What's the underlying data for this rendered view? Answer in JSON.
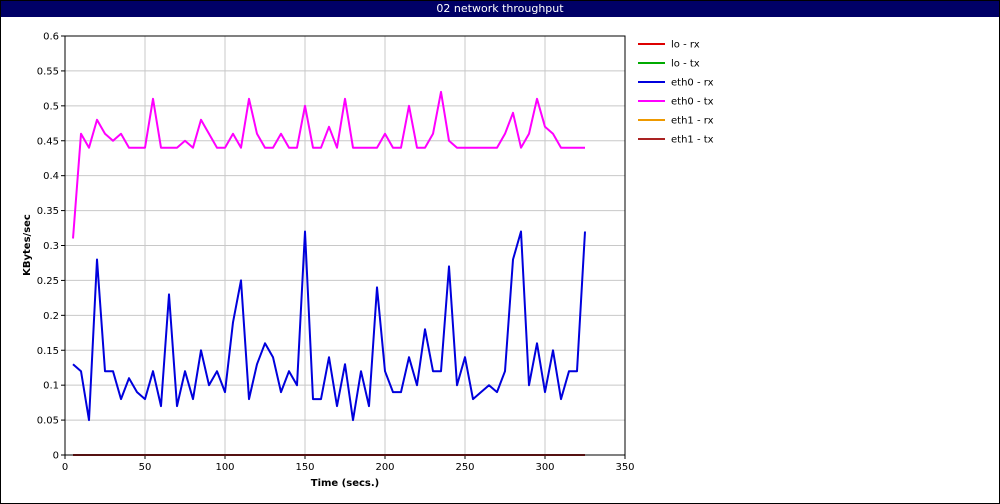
{
  "window": {
    "title": "02 network throughput"
  },
  "chart_data": {
    "type": "line",
    "title": "02 network throughput",
    "xlabel": "Time (secs.)",
    "ylabel": "KBytes/sec",
    "xlim": [
      0,
      350
    ],
    "ylim": [
      0,
      0.6
    ],
    "x_ticks": [
      "0",
      "50",
      "100",
      "150",
      "200",
      "250",
      "300",
      "350"
    ],
    "y_ticks": [
      "0",
      "0.05",
      "0.1",
      "0.15",
      "0.2",
      "0.25",
      "0.3",
      "0.35",
      "0.4",
      "0.45",
      "0.5",
      "0.55",
      "0.6"
    ],
    "grid": true,
    "legend_position": "right",
    "x": [
      5,
      10,
      15,
      20,
      25,
      30,
      35,
      40,
      45,
      50,
      55,
      60,
      65,
      70,
      75,
      80,
      85,
      90,
      95,
      100,
      105,
      110,
      115,
      120,
      125,
      130,
      135,
      140,
      145,
      150,
      155,
      160,
      165,
      170,
      175,
      180,
      185,
      190,
      195,
      200,
      205,
      210,
      215,
      220,
      225,
      230,
      235,
      240,
      245,
      250,
      255,
      260,
      265,
      270,
      275,
      280,
      285,
      290,
      295,
      300,
      305,
      310,
      315,
      320,
      325
    ],
    "series": [
      {
        "name": "lo - rx",
        "color": "#dd0000",
        "values": [
          0,
          0,
          0,
          0,
          0,
          0,
          0,
          0,
          0,
          0,
          0,
          0,
          0,
          0,
          0,
          0,
          0,
          0,
          0,
          0,
          0,
          0,
          0,
          0,
          0,
          0,
          0,
          0,
          0,
          0,
          0,
          0,
          0,
          0,
          0,
          0,
          0,
          0,
          0,
          0,
          0,
          0,
          0,
          0,
          0,
          0,
          0,
          0,
          0,
          0,
          0,
          0,
          0,
          0,
          0,
          0,
          0,
          0,
          0,
          0,
          0,
          0,
          0,
          0,
          0
        ]
      },
      {
        "name": "lo - tx",
        "color": "#00aa00",
        "values": [
          0,
          0,
          0,
          0,
          0,
          0,
          0,
          0,
          0,
          0,
          0,
          0,
          0,
          0,
          0,
          0,
          0,
          0,
          0,
          0,
          0,
          0,
          0,
          0,
          0,
          0,
          0,
          0,
          0,
          0,
          0,
          0,
          0,
          0,
          0,
          0,
          0,
          0,
          0,
          0,
          0,
          0,
          0,
          0,
          0,
          0,
          0,
          0,
          0,
          0,
          0,
          0,
          0,
          0,
          0,
          0,
          0,
          0,
          0,
          0,
          0,
          0,
          0,
          0,
          0
        ]
      },
      {
        "name": "eth0 - rx",
        "color": "#0000dd",
        "values": [
          0.13,
          0.12,
          0.05,
          0.28,
          0.12,
          0.12,
          0.08,
          0.11,
          0.09,
          0.08,
          0.12,
          0.07,
          0.23,
          0.07,
          0.12,
          0.08,
          0.15,
          0.1,
          0.12,
          0.09,
          0.19,
          0.25,
          0.08,
          0.13,
          0.16,
          0.14,
          0.09,
          0.12,
          0.1,
          0.32,
          0.08,
          0.08,
          0.14,
          0.07,
          0.13,
          0.05,
          0.12,
          0.07,
          0.24,
          0.12,
          0.09,
          0.09,
          0.14,
          0.1,
          0.18,
          0.12,
          0.12,
          0.27,
          0.1,
          0.14,
          0.08,
          0.09,
          0.1,
          0.09,
          0.12,
          0.28,
          0.32,
          0.1,
          0.16,
          0.09,
          0.15,
          0.08,
          0.12,
          0.12,
          0.32
        ]
      },
      {
        "name": "eth0 - tx",
        "color": "#ff00ff",
        "values": [
          0.31,
          0.46,
          0.44,
          0.48,
          0.46,
          0.45,
          0.46,
          0.44,
          0.44,
          0.44,
          0.51,
          0.44,
          0.44,
          0.44,
          0.45,
          0.44,
          0.48,
          0.46,
          0.44,
          0.44,
          0.46,
          0.44,
          0.51,
          0.46,
          0.44,
          0.44,
          0.46,
          0.44,
          0.44,
          0.5,
          0.44,
          0.44,
          0.47,
          0.44,
          0.51,
          0.44,
          0.44,
          0.44,
          0.44,
          0.46,
          0.44,
          0.44,
          0.5,
          0.44,
          0.44,
          0.46,
          0.52,
          0.45,
          0.44,
          0.44,
          0.44,
          0.44,
          0.44,
          0.44,
          0.46,
          0.49,
          0.44,
          0.46,
          0.51,
          0.47,
          0.46,
          0.44,
          0.44,
          0.44,
          0.44
        ]
      },
      {
        "name": "eth1 - rx",
        "color": "#ee9900",
        "values": [
          0,
          0,
          0,
          0,
          0,
          0,
          0,
          0,
          0,
          0,
          0,
          0,
          0,
          0,
          0,
          0,
          0,
          0,
          0,
          0,
          0,
          0,
          0,
          0,
          0,
          0,
          0,
          0,
          0,
          0,
          0,
          0,
          0,
          0,
          0,
          0,
          0,
          0,
          0,
          0,
          0,
          0,
          0,
          0,
          0,
          0,
          0,
          0,
          0,
          0,
          0,
          0,
          0,
          0,
          0,
          0,
          0,
          0,
          0,
          0,
          0,
          0,
          0,
          0,
          0
        ]
      },
      {
        "name": "eth1 - tx",
        "color": "#aa2222",
        "values": [
          0,
          0,
          0,
          0,
          0,
          0,
          0,
          0,
          0,
          0,
          0,
          0,
          0,
          0,
          0,
          0,
          0,
          0,
          0,
          0,
          0,
          0,
          0,
          0,
          0,
          0,
          0,
          0,
          0,
          0,
          0,
          0,
          0,
          0,
          0,
          0,
          0,
          0,
          0,
          0,
          0,
          0,
          0,
          0,
          0,
          0,
          0,
          0,
          0,
          0,
          0,
          0,
          0,
          0,
          0,
          0,
          0,
          0,
          0,
          0,
          0,
          0,
          0,
          0,
          0
        ]
      }
    ]
  }
}
